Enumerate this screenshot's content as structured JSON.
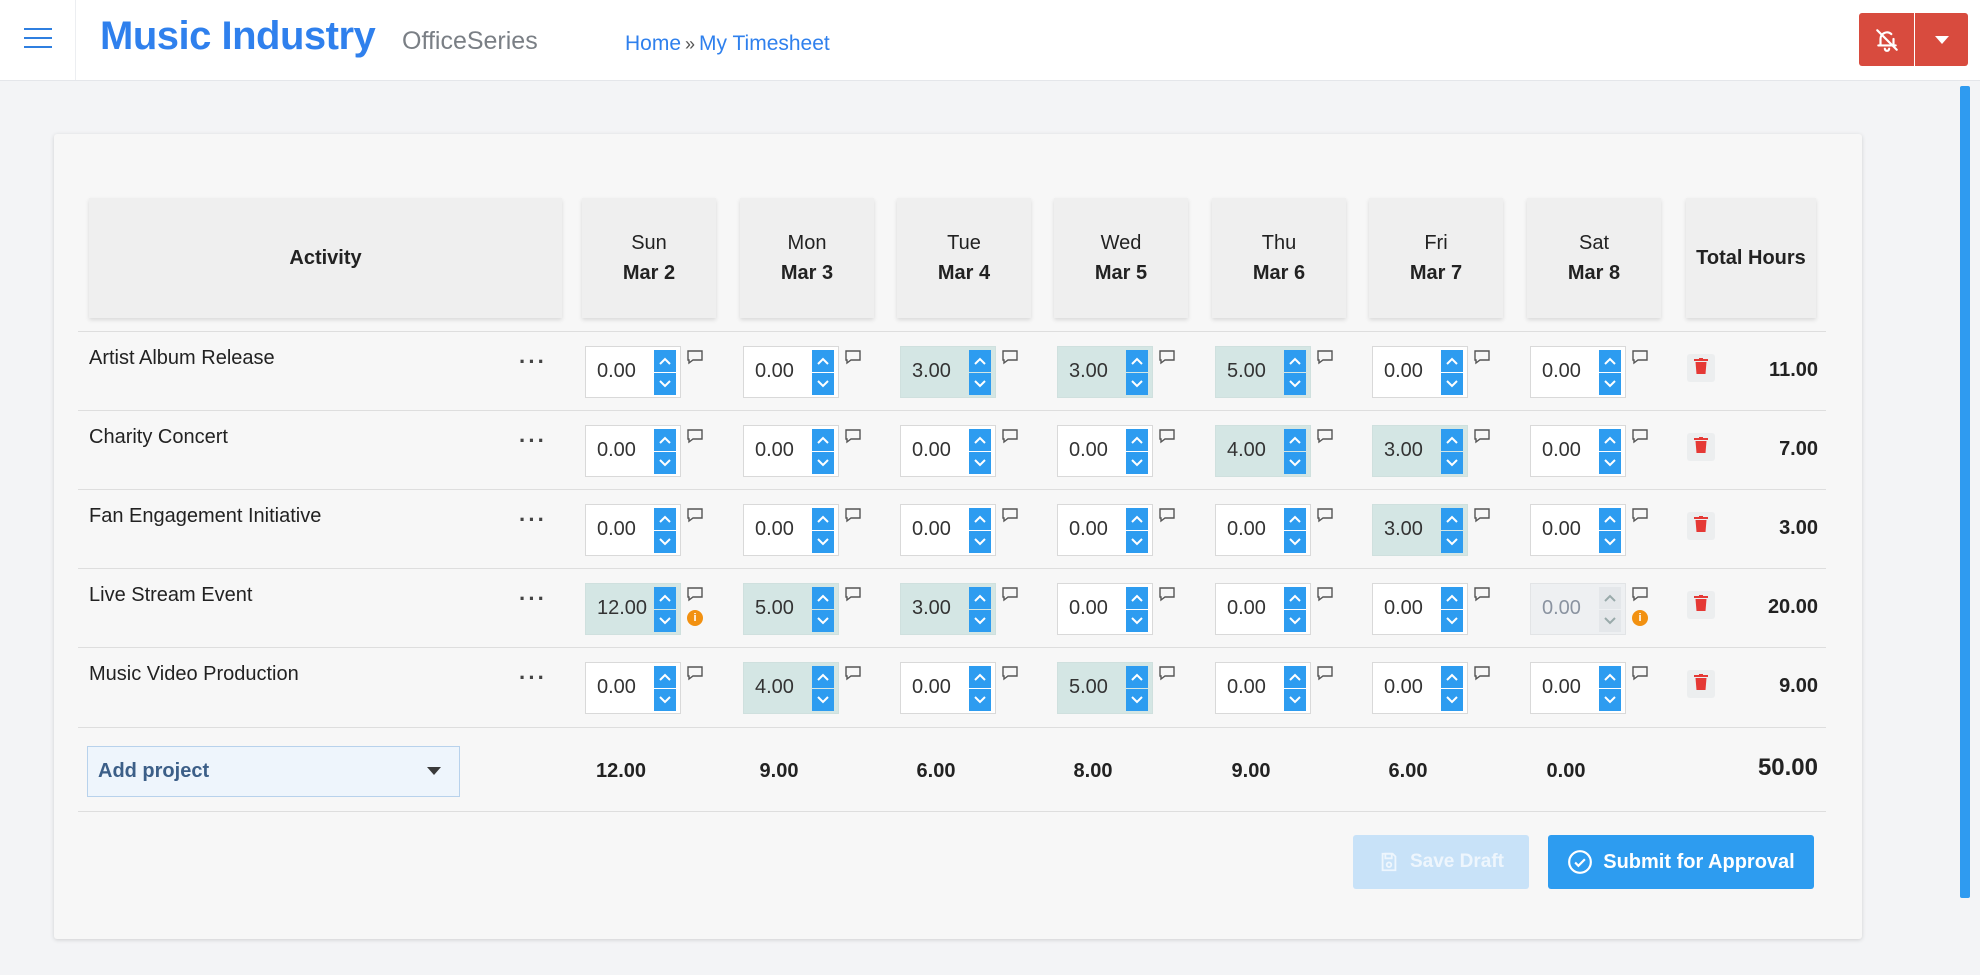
{
  "header": {
    "app_title": "Music Industry",
    "suite_name": "OfficeSeries",
    "breadcrumb": [
      "Home",
      "My Timesheet"
    ]
  },
  "table": {
    "activity_header": "Activity",
    "total_header": "Total Hours",
    "days": [
      {
        "day": "Sun",
        "date": "Mar 2"
      },
      {
        "day": "Mon",
        "date": "Mar 3"
      },
      {
        "day": "Tue",
        "date": "Mar 4"
      },
      {
        "day": "Wed",
        "date": "Mar 5"
      },
      {
        "day": "Thu",
        "date": "Mar 6"
      },
      {
        "day": "Fri",
        "date": "Mar 7"
      },
      {
        "day": "Sat",
        "date": "Mar 8"
      }
    ],
    "rows": [
      {
        "name": "Artist Album Release",
        "hours": [
          "0.00",
          "0.00",
          "3.00",
          "3.00",
          "5.00",
          "0.00",
          "0.00"
        ],
        "total": "11.00"
      },
      {
        "name": "Charity Concert",
        "hours": [
          "0.00",
          "0.00",
          "0.00",
          "0.00",
          "4.00",
          "3.00",
          "0.00"
        ],
        "total": "7.00"
      },
      {
        "name": "Fan Engagement Initiative",
        "hours": [
          "0.00",
          "0.00",
          "0.00",
          "0.00",
          "0.00",
          "3.00",
          "0.00"
        ],
        "total": "3.00"
      },
      {
        "name": "Live Stream Event",
        "hours": [
          "12.00",
          "5.00",
          "3.00",
          "0.00",
          "0.00",
          "0.00",
          "0.00"
        ],
        "total": "20.00"
      },
      {
        "name": "Music Video Production",
        "hours": [
          "0.00",
          "4.00",
          "0.00",
          "5.00",
          "0.00",
          "0.00",
          "0.00"
        ],
        "total": "9.00"
      }
    ],
    "warnings": [
      {
        "row": 3,
        "col": 0
      },
      {
        "row": 3,
        "col": 6
      }
    ],
    "disabled_cells": [
      {
        "row": 3,
        "col": 6
      }
    ],
    "column_totals": [
      "12.00",
      "9.00",
      "6.00",
      "8.00",
      "9.00",
      "6.00",
      "0.00"
    ],
    "grand_total": "50.00",
    "row_menu_label": "···"
  },
  "add_project": {
    "label": "Add project"
  },
  "actions": {
    "save_draft": "Save Draft",
    "submit": "Submit for Approval"
  },
  "colors": {
    "brand": "#2f80ed",
    "accent": "#2d9cf0",
    "alert": "#d84b3e",
    "highlight": "#d4e6e4",
    "warning": "#f29111",
    "delete": "#e53935"
  },
  "icons": [
    "menu-icon",
    "bell-off-icon",
    "caret-down-icon",
    "comment-icon",
    "warning-icon",
    "trash-icon",
    "save-icon",
    "check-circle-icon",
    "spin-up-icon",
    "spin-down-icon"
  ]
}
